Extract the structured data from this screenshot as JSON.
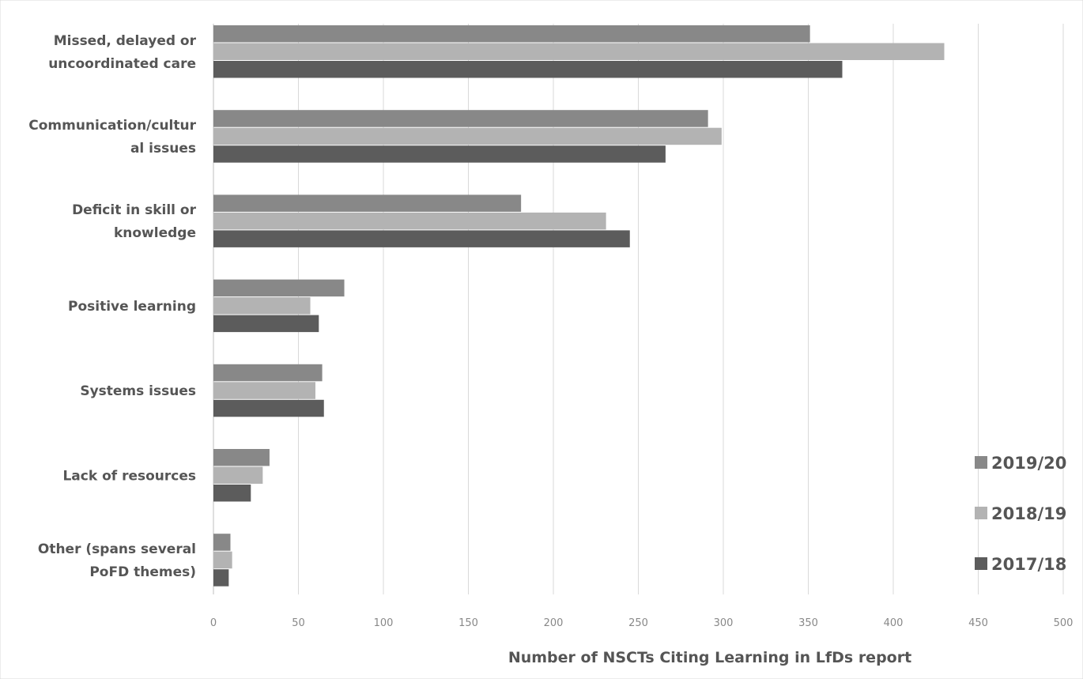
{
  "chart_data": {
    "type": "bar",
    "orientation": "horizontal",
    "title": "",
    "xlabel": "Number of NSCTs Citing Learning in LfDs report",
    "ylabel": "",
    "xlim": [
      0,
      500
    ],
    "x_ticks": [
      0,
      50,
      100,
      150,
      200,
      250,
      300,
      350,
      400,
      450,
      500
    ],
    "grid": "vertical",
    "legend_position": "right",
    "categories": [
      [
        "Missed, delayed or",
        "uncoordinated care"
      ],
      [
        "Communication/cultur",
        "al issues"
      ],
      [
        "Deficit in skill or",
        "knowledge"
      ],
      [
        "Positive learning"
      ],
      [
        "Systems issues"
      ],
      [
        "Lack of resources"
      ],
      [
        "Other (spans several",
        "PoFD themes)"
      ]
    ],
    "series": [
      {
        "name": "2019/20",
        "color": "#888888",
        "values": [
          351,
          291,
          181,
          77,
          64,
          33,
          10
        ]
      },
      {
        "name": "2018/19",
        "color": "#b3b3b3",
        "values": [
          430,
          299,
          231,
          57,
          60,
          29,
          11
        ]
      },
      {
        "name": "2017/18",
        "color": "#5c5c5c",
        "values": [
          370,
          266,
          245,
          62,
          65,
          22,
          9
        ]
      }
    ]
  }
}
